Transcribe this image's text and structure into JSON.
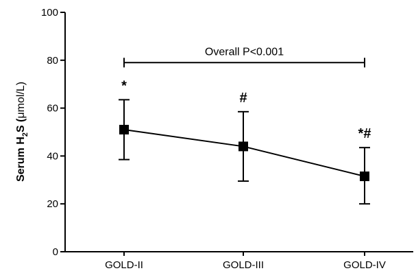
{
  "chart_data": {
    "type": "line",
    "ylabel_prefix": "Serum H",
    "ylabel_sub": "2",
    "ylabel_suffix": "S (",
    "ylabel_unit": "μmol/L)",
    "xlabel": "",
    "ylim": [
      0,
      100
    ],
    "yticks": [
      0,
      20,
      40,
      60,
      80,
      100
    ],
    "categories": [
      "GOLD-II",
      "GOLD-III",
      "GOLD-IV"
    ],
    "series": [
      {
        "values": [
          51,
          44,
          31.5
        ],
        "error_low": [
          38.5,
          29.5,
          20
        ],
        "error_high": [
          63.5,
          58.5,
          43.5
        ],
        "marker": "square",
        "color": "#000000"
      }
    ],
    "point_marks": [
      "*",
      "#",
      "*#"
    ],
    "bracket": {
      "label": "Overall P<0.001",
      "y": 79,
      "from": "GOLD-II",
      "to": "GOLD-IV"
    },
    "grid": false
  }
}
